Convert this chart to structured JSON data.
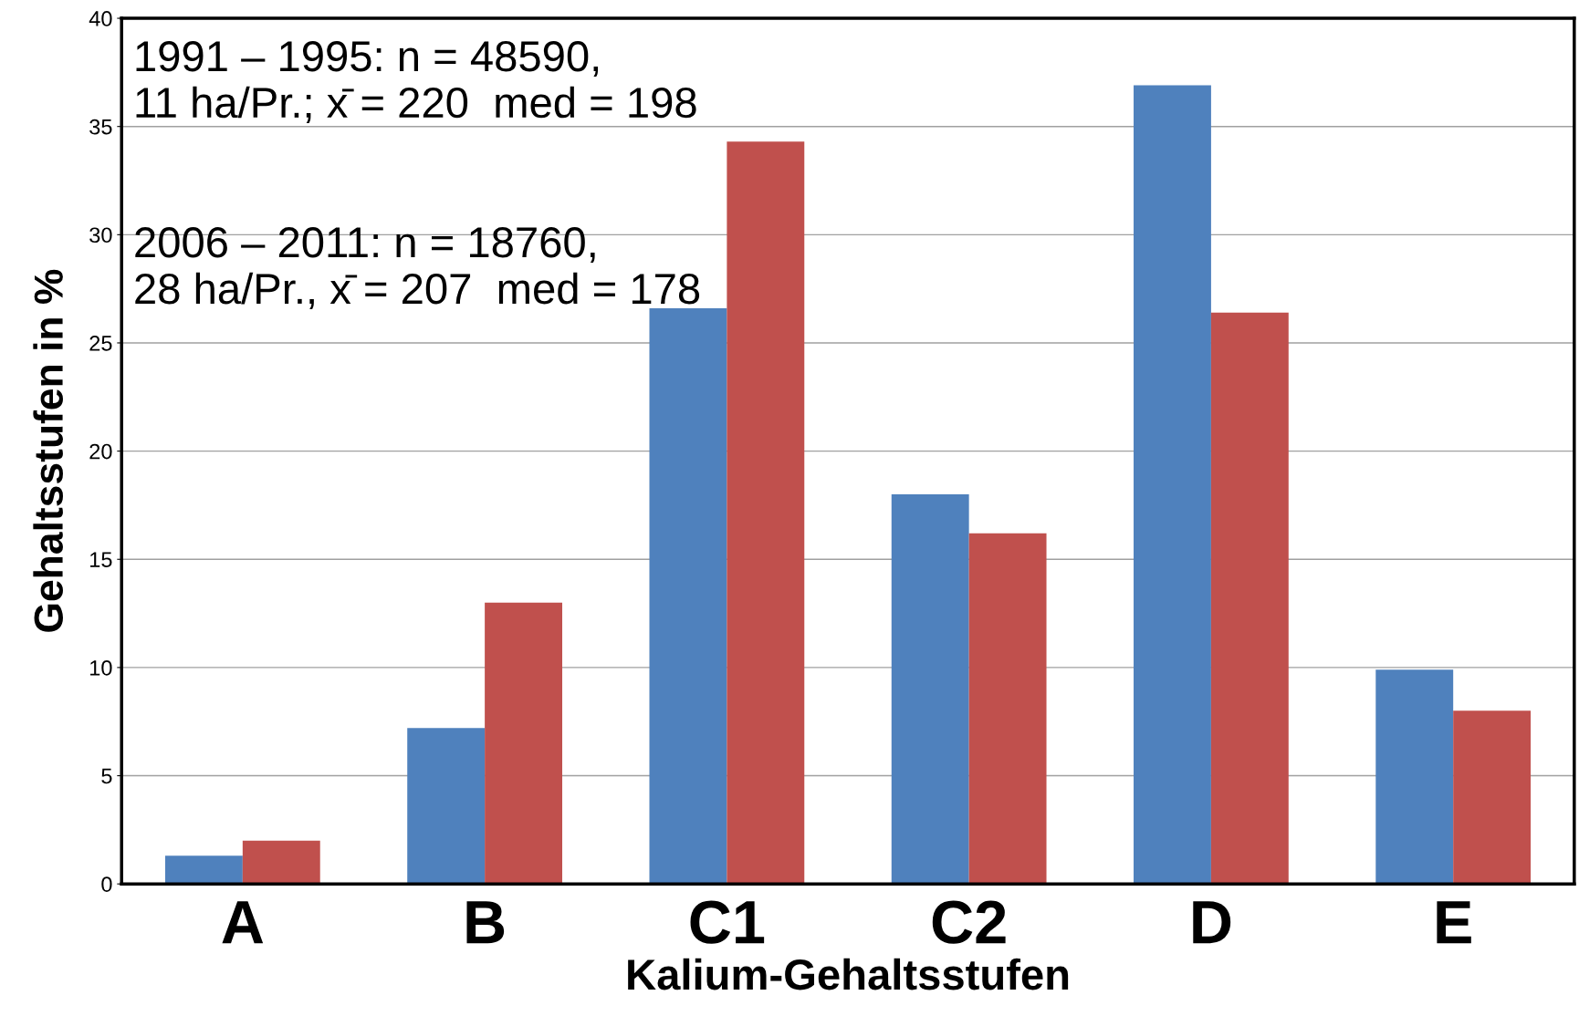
{
  "chart_data": {
    "type": "bar",
    "xlabel": "Kalium-Gehaltsstufen",
    "ylabel": "Gehaltsstufen in %",
    "categories": [
      "A",
      "B",
      "C1",
      "C2",
      "D",
      "E"
    ],
    "series": [
      {
        "color": "#4f81bd",
        "values": [
          1.3,
          7.2,
          26.6,
          18.0,
          36.9,
          9.9
        ]
      },
      {
        "color": "#c0504d",
        "values": [
          2.0,
          13.0,
          34.3,
          16.2,
          26.4,
          8.0
        ]
      }
    ],
    "ylim": [
      0,
      40
    ],
    "yticks": [
      0,
      5,
      10,
      15,
      20,
      25,
      30,
      35,
      40
    ],
    "grid": "y",
    "legend": false,
    "annotations": [
      "1991 – 1995: n = 48590,\n11 ha/Pr.; x̄ = 220  med = 198",
      "2006 – 2011: n = 18760,\n28 ha/Pr., x̄ = 207  med = 178"
    ]
  }
}
